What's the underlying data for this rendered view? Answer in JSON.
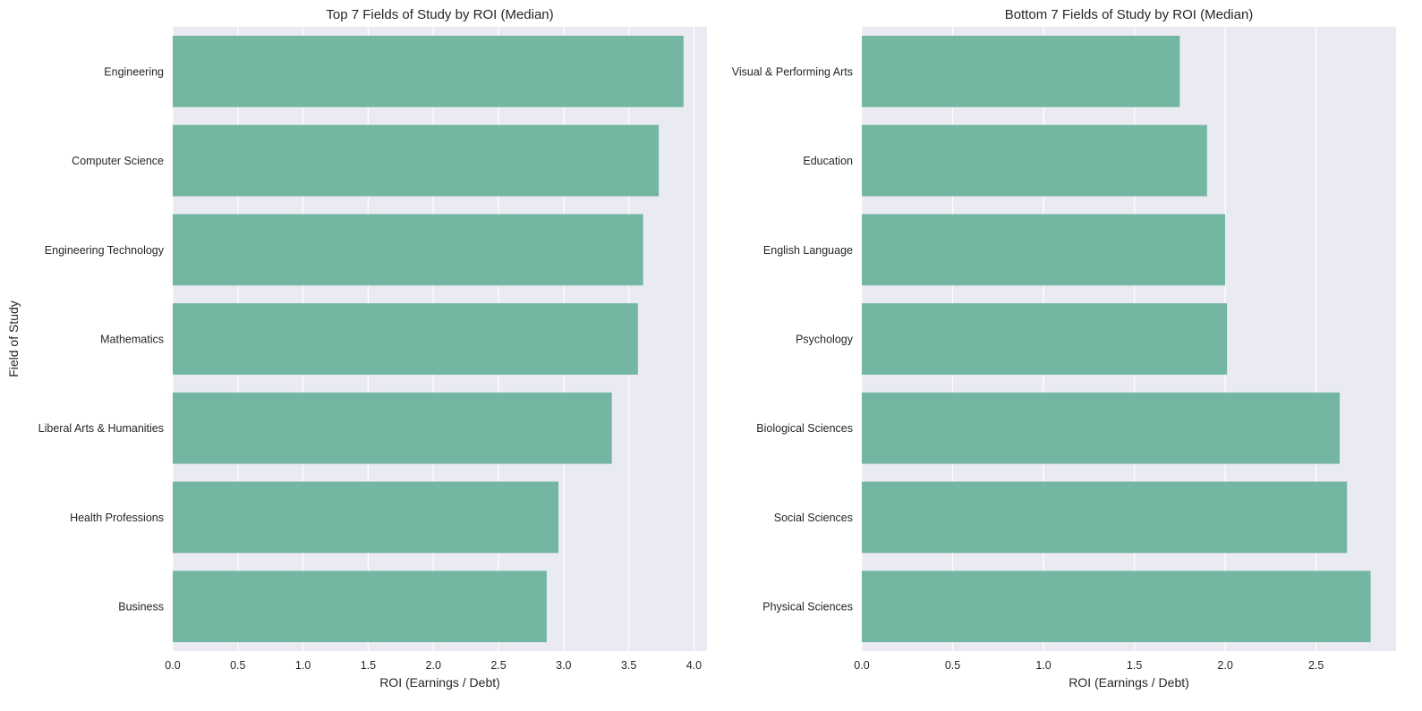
{
  "chart_data": [
    {
      "type": "bar",
      "orientation": "horizontal",
      "title": "Top 7 Fields of Study by ROI (Median)",
      "xlabel": "ROI (Earnings / Debt)",
      "ylabel": "Field of Study",
      "categories": [
        "Engineering",
        "Computer Science",
        "Engineering Technology",
        "Mathematics",
        "Liberal Arts & Humanities",
        "Health Professions",
        "Business"
      ],
      "values": [
        3.92,
        3.73,
        3.61,
        3.57,
        3.37,
        2.96,
        2.87
      ],
      "xlim": [
        0,
        4.1
      ],
      "xticks": [
        0,
        0.5,
        1,
        1.5,
        2,
        2.5,
        3,
        3.5,
        4
      ],
      "xtick_labels": [
        "0.0",
        "0.5",
        "1.0",
        "1.5",
        "2.0",
        "2.5",
        "3.0",
        "3.5",
        "4.0"
      ],
      "grid": true,
      "bar_color": "#73b6a1",
      "background_color": "#eaeaf2"
    },
    {
      "type": "bar",
      "orientation": "horizontal",
      "title": "Bottom 7 Fields of Study by ROI (Median)",
      "xlabel": "ROI (Earnings / Debt)",
      "ylabel": "",
      "categories": [
        "Visual & Performing Arts",
        "Education",
        "English Language",
        "Psychology",
        "Biological Sciences",
        "Social Sciences",
        "Physical Sciences"
      ],
      "values": [
        1.75,
        1.9,
        2.0,
        2.01,
        2.63,
        2.67,
        2.8
      ],
      "xlim": [
        0,
        2.94
      ],
      "xticks": [
        0,
        0.5,
        1,
        1.5,
        2,
        2.5
      ],
      "xtick_labels": [
        "0.0",
        "0.5",
        "1.0",
        "1.5",
        "2.0",
        "2.5"
      ],
      "grid": true,
      "bar_color": "#73b6a1",
      "background_color": "#eaeaf2"
    }
  ]
}
